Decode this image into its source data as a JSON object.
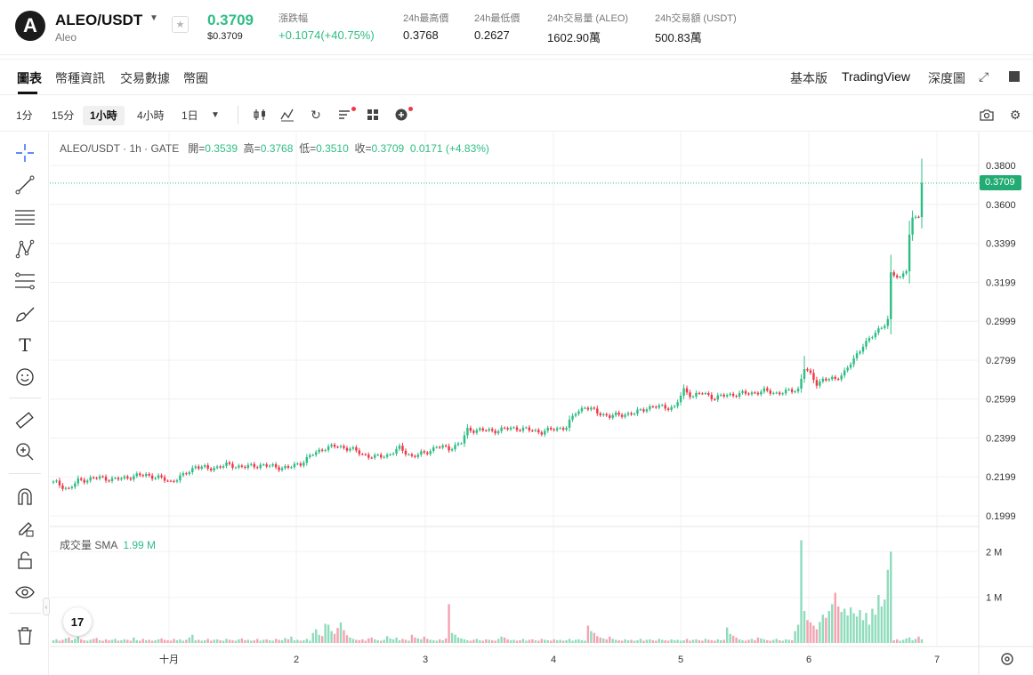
{
  "header": {
    "logo_letter": "A",
    "pair": "ALEO/USDT",
    "pair_sub": "Aleo",
    "price": "0.3709",
    "price_usd": "$0.3709",
    "change_label": "漲跌幅",
    "change_value": "+0.1074(+40.75%)",
    "high_label": "24h最高價",
    "high_value": "0.3768",
    "low_label": "24h最低價",
    "low_value": "0.2627",
    "vol_label": "24h交易量 (ALEO)",
    "vol_value": "1602.90萬",
    "amount_label": "24h交易額 (USDT)",
    "amount_value": "500.83萬"
  },
  "tabs": [
    "圖表",
    "幣種資訊",
    "交易數據",
    "幣圈"
  ],
  "view_modes": [
    "基本版",
    "TradingView",
    "深度圖"
  ],
  "timeframes": [
    "1分",
    "15分",
    "1小時",
    "4小時",
    "1日"
  ],
  "active_timeframe": "1小時",
  "legend": {
    "symbol": "ALEO/USDT · 1h · GATE",
    "open_label": "開=",
    "open": "0.3539",
    "high_label": "高=",
    "high": "0.3768",
    "low_label": "低=",
    "low": "0.3510",
    "close_label": "收=",
    "close": "0.3709",
    "change": "0.0171 (+4.83%)"
  },
  "volume_legend": {
    "label": "成交量 SMA",
    "value": "1.99 M"
  },
  "tv_logo": "17",
  "colors": {
    "up": "#2ebd85",
    "down": "#f23645",
    "vol_up": "#8fdcbd",
    "vol_down": "#f5a3b0"
  },
  "chart_data": {
    "type": "candlestick",
    "last_price": "0.3709",
    "y_ticks": [
      "0.3800",
      "0.3600",
      "0.3399",
      "0.3199",
      "0.2999",
      "0.2799",
      "0.2599",
      "0.2399",
      "0.2199",
      "0.1999"
    ],
    "y_range": [
      0.1985,
      0.3835
    ],
    "x_ticks": [
      "十月",
      "2",
      "3",
      "4",
      "5",
      "6",
      "7"
    ],
    "volume_ticks": [
      "2 M",
      "1 M"
    ],
    "volume_range": [
      0,
      2.2
    ],
    "anchors": [
      [
        0,
        0.2175
      ],
      [
        5,
        0.2135
      ],
      [
        8,
        0.218
      ],
      [
        15,
        0.2195
      ],
      [
        20,
        0.2185
      ],
      [
        25,
        0.22
      ],
      [
        30,
        0.221
      ],
      [
        35,
        0.219
      ],
      [
        38,
        0.2175
      ],
      [
        42,
        0.2205
      ],
      [
        46,
        0.2255
      ],
      [
        50,
        0.224
      ],
      [
        56,
        0.226
      ],
      [
        62,
        0.225
      ],
      [
        67,
        0.226
      ],
      [
        72,
        0.225
      ],
      [
        76,
        0.2245
      ],
      [
        80,
        0.227
      ],
      [
        84,
        0.2315
      ],
      [
        88,
        0.235
      ],
      [
        92,
        0.2355
      ],
      [
        96,
        0.2345
      ],
      [
        100,
        0.2315
      ],
      [
        104,
        0.23
      ],
      [
        108,
        0.231
      ],
      [
        112,
        0.2345
      ],
      [
        116,
        0.2305
      ],
      [
        120,
        0.232
      ],
      [
        124,
        0.2355
      ],
      [
        128,
        0.2345
      ],
      [
        132,
        0.2375
      ],
      [
        134,
        0.244
      ],
      [
        138,
        0.244
      ],
      [
        142,
        0.2435
      ],
      [
        146,
        0.2445
      ],
      [
        150,
        0.245
      ],
      [
        154,
        0.244
      ],
      [
        158,
        0.243
      ],
      [
        162,
        0.2445
      ],
      [
        166,
        0.2455
      ],
      [
        169,
        0.253
      ],
      [
        172,
        0.256
      ],
      [
        176,
        0.253
      ],
      [
        180,
        0.251
      ],
      [
        184,
        0.252
      ],
      [
        188,
        0.2525
      ],
      [
        192,
        0.2555
      ],
      [
        196,
        0.256
      ],
      [
        201,
        0.2555
      ],
      [
        204,
        0.2645
      ],
      [
        207,
        0.2615
      ],
      [
        210,
        0.263
      ],
      [
        214,
        0.2605
      ],
      [
        218,
        0.262
      ],
      [
        222,
        0.2625
      ],
      [
        226,
        0.263
      ],
      [
        230,
        0.264
      ],
      [
        234,
        0.263
      ],
      [
        237,
        0.2635
      ],
      [
        241,
        0.265
      ],
      [
        243,
        0.276
      ],
      [
        245,
        0.272
      ],
      [
        247,
        0.268
      ],
      [
        249,
        0.27
      ],
      [
        253,
        0.27
      ],
      [
        256,
        0.274
      ],
      [
        259,
        0.28
      ],
      [
        262,
        0.288
      ],
      [
        265,
        0.292
      ],
      [
        268,
        0.297
      ],
      [
        270,
        0.301
      ],
      [
        271,
        0.324
      ],
      [
        274,
        0.322
      ],
      [
        276,
        0.327
      ],
      [
        277,
        0.345
      ],
      [
        278,
        0.352
      ],
      [
        280,
        0.3539
      ],
      [
        281,
        0.3709
      ]
    ],
    "volume": [
      0.06,
      0.08,
      0.05,
      0.07,
      0.1,
      0.12,
      0.06,
      0.09,
      0.14,
      0.08,
      0.06,
      0.05,
      0.07,
      0.09,
      0.11,
      0.06,
      0.05,
      0.08,
      0.06,
      0.07,
      0.09,
      0.05,
      0.06,
      0.08,
      0.07,
      0.05,
      0.12,
      0.06,
      0.05,
      0.09,
      0.06,
      0.07,
      0.05,
      0.06,
      0.08,
      0.1,
      0.07,
      0.06,
      0.05,
      0.09,
      0.06,
      0.08,
      0.05,
      0.07,
      0.12,
      0.18,
      0.06,
      0.07,
      0.05,
      0.06,
      0.09,
      0.05,
      0.07,
      0.08,
      0.06,
      0.05,
      0.09,
      0.07,
      0.06,
      0.05,
      0.08,
      0.1,
      0.06,
      0.07,
      0.05,
      0.06,
      0.09,
      0.05,
      0.07,
      0.08,
      0.06,
      0.05,
      0.09,
      0.07,
      0.06,
      0.11,
      0.08,
      0.14,
      0.06,
      0.07,
      0.05,
      0.06,
      0.09,
      0.05,
      0.22,
      0.3,
      0.18,
      0.15,
      0.42,
      0.4,
      0.26,
      0.2,
      0.33,
      0.45,
      0.28,
      0.17,
      0.12,
      0.09,
      0.07,
      0.06,
      0.08,
      0.05,
      0.1,
      0.12,
      0.08,
      0.06,
      0.05,
      0.07,
      0.15,
      0.1,
      0.08,
      0.12,
      0.06,
      0.09,
      0.07,
      0.05,
      0.18,
      0.12,
      0.1,
      0.08,
      0.14,
      0.09,
      0.07,
      0.06,
      0.05,
      0.08,
      0.06,
      0.1,
      0.85,
      0.22,
      0.18,
      0.12,
      0.1,
      0.08,
      0.06,
      0.05,
      0.07,
      0.09,
      0.06,
      0.05,
      0.08,
      0.07,
      0.06,
      0.05,
      0.09,
      0.14,
      0.12,
      0.08,
      0.06,
      0.07,
      0.05,
      0.06,
      0.09,
      0.05,
      0.07,
      0.08,
      0.06,
      0.05,
      0.09,
      0.07,
      0.06,
      0.05,
      0.08,
      0.06,
      0.07,
      0.05,
      0.06,
      0.09,
      0.05,
      0.07,
      0.08,
      0.06,
      0.05,
      0.38,
      0.26,
      0.22,
      0.15,
      0.12,
      0.1,
      0.08,
      0.14,
      0.09,
      0.07,
      0.06,
      0.05,
      0.08,
      0.06,
      0.07,
      0.05,
      0.06,
      0.09,
      0.05,
      0.07,
      0.08,
      0.06,
      0.05,
      0.09,
      0.07,
      0.06,
      0.05,
      0.08,
      0.06,
      0.07,
      0.05,
      0.06,
      0.09,
      0.05,
      0.07,
      0.08,
      0.06,
      0.05,
      0.09,
      0.07,
      0.06,
      0.05,
      0.08,
      0.06,
      0.07,
      0.34,
      0.2,
      0.16,
      0.12,
      0.08,
      0.06,
      0.05,
      0.07,
      0.09,
      0.06,
      0.12,
      0.1,
      0.08,
      0.06,
      0.05,
      0.07,
      0.09,
      0.06,
      0.05,
      0.08,
      0.07,
      0.06,
      0.26,
      0.4,
      2.25,
      0.7,
      0.5,
      0.45,
      0.38,
      0.3,
      0.46,
      0.62,
      0.55,
      0.7,
      0.85,
      1.1,
      0.8,
      0.68,
      0.75,
      0.6,
      0.78,
      0.65,
      0.58,
      0.72,
      0.5,
      0.66,
      0.4,
      0.75,
      0.62,
      1.05,
      0.8,
      0.95,
      1.6,
      2.0
    ]
  }
}
